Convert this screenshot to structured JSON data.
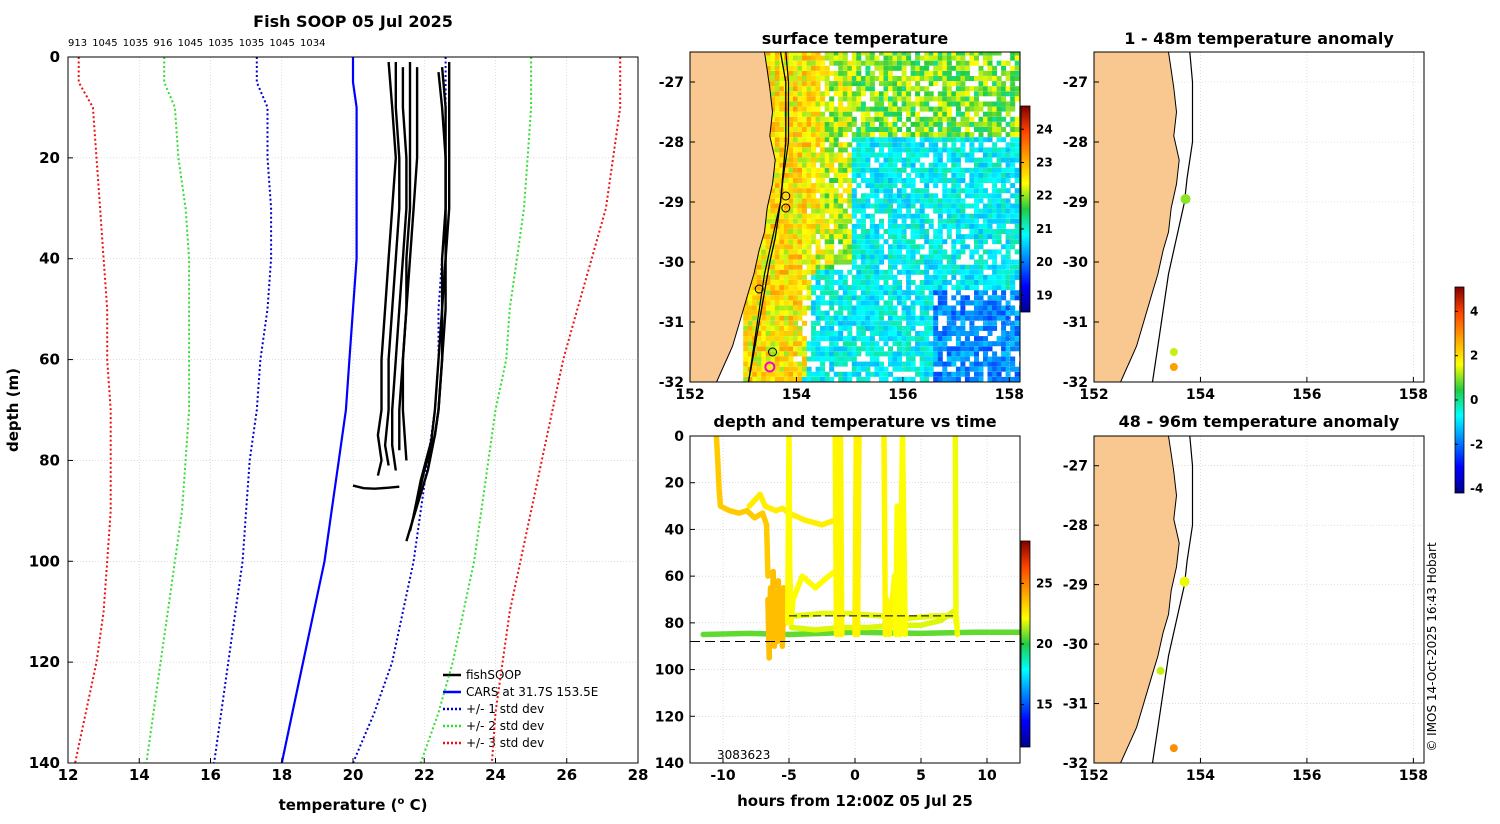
{
  "colors": {
    "fish": "#000000",
    "cars": "#0000ff",
    "sd1": "#0000cc",
    "sd2": "#33dd33",
    "sd3": "#ee1111",
    "land": "#f9c890",
    "grid": "#c8c8c8",
    "magenta": "#ff00cc"
  },
  "credit": "© IMOS 14-Oct-2025 16:43 Hobart",
  "chart_data": [
    {
      "id": "profile",
      "type": "line",
      "title": "Fish SOOP 05 Jul 2025",
      "xlabel": "temperature (",
      "xlabel_sup": "o",
      "xlabel_end": " C)",
      "ylabel": "depth (m)",
      "xlim": [
        12,
        28
      ],
      "ylim": [
        0,
        140
      ],
      "xticks": [
        12,
        14,
        16,
        18,
        20,
        22,
        24,
        26,
        28
      ],
      "yticks": [
        0,
        20,
        40,
        60,
        80,
        100,
        120,
        140
      ],
      "top_labels": [
        "913",
        "1045",
        "1035",
        "916",
        "1045",
        "1035",
        "1035",
        "1045",
        "1034"
      ],
      "legend": [
        "fishSOOP",
        "CARS at 31.7S 153.5E",
        "+/- 1 std dev",
        "+/- 2 std dev",
        "+/- 3 std dev"
      ],
      "depth": [
        0,
        5,
        10,
        20,
        30,
        40,
        50,
        60,
        70,
        80,
        90,
        100,
        110,
        120,
        130,
        140
      ],
      "cars": [
        20.0,
        20.0,
        20.1,
        20.1,
        20.1,
        20.1,
        20.0,
        19.9,
        19.8,
        19.6,
        19.4,
        19.2,
        18.9,
        18.6,
        18.3,
        18.0
      ],
      "sd1_low": [
        17.3,
        17.3,
        17.6,
        17.6,
        17.7,
        17.7,
        17.6,
        17.4,
        17.3,
        17.1,
        17.0,
        16.9,
        16.7,
        16.5,
        16.3,
        16.1
      ],
      "sd1_high": [
        22.6,
        22.6,
        22.6,
        22.6,
        22.6,
        22.5,
        22.4,
        22.4,
        22.3,
        22.1,
        21.9,
        21.7,
        21.4,
        21.1,
        20.6,
        20.0
      ],
      "sd2_low": [
        14.7,
        14.7,
        15.0,
        15.1,
        15.3,
        15.4,
        15.4,
        15.4,
        15.4,
        15.3,
        15.2,
        15.0,
        14.8,
        14.6,
        14.4,
        14.2
      ],
      "sd2_high": [
        25.0,
        25.0,
        25.0,
        24.9,
        24.8,
        24.6,
        24.4,
        24.3,
        24.0,
        23.8,
        23.6,
        23.4,
        23.1,
        22.8,
        22.4,
        21.9
      ],
      "sd3_low": [
        12.3,
        12.3,
        12.7,
        12.8,
        12.9,
        13.0,
        13.1,
        13.1,
        13.2,
        13.2,
        13.2,
        13.1,
        13.0,
        12.8,
        12.5,
        12.2
      ],
      "sd3_high": [
        27.5,
        27.5,
        27.5,
        27.3,
        27.1,
        26.7,
        26.3,
        25.9,
        25.6,
        25.3,
        25.0,
        24.7,
        24.4,
        24.2,
        24.0,
        23.9
      ],
      "casts": [
        {
          "t": [
            21.0,
            21.1,
            21.2,
            21.1,
            21.0,
            20.9,
            20.8,
            20.8,
            20.7,
            20.8,
            20.7
          ],
          "d": [
            1,
            10,
            20,
            30,
            40,
            50,
            60,
            70,
            75,
            80,
            83
          ]
        },
        {
          "t": [
            21.2,
            21.2,
            21.3,
            21.3,
            21.2,
            21.1,
            21.0,
            21.0,
            20.9,
            21.0
          ],
          "d": [
            1,
            10,
            20,
            30,
            40,
            50,
            60,
            70,
            77,
            81
          ]
        },
        {
          "t": [
            21.4,
            21.4,
            21.5,
            21.5,
            21.4,
            21.3,
            21.2,
            21.1,
            21.1,
            21.2
          ],
          "d": [
            2,
            10,
            20,
            30,
            40,
            50,
            60,
            70,
            77,
            82
          ]
        },
        {
          "t": [
            21.6,
            21.6,
            21.6,
            21.6,
            21.5,
            21.5,
            21.4,
            21.3,
            21.3
          ],
          "d": [
            1,
            10,
            20,
            30,
            40,
            50,
            60,
            70,
            78
          ]
        },
        {
          "t": [
            21.8,
            21.8,
            21.8,
            21.7,
            21.6,
            21.5,
            21.4,
            21.4,
            21.5
          ],
          "d": [
            2,
            10,
            20,
            30,
            40,
            50,
            60,
            70,
            80
          ]
        },
        {
          "t": [
            22.7,
            22.7,
            22.7,
            22.7,
            22.6,
            22.6,
            22.5,
            22.4,
            22.3,
            22.0,
            21.8,
            21.6
          ],
          "d": [
            1,
            10,
            20,
            30,
            40,
            50,
            60,
            70,
            75,
            82,
            88,
            94
          ]
        },
        {
          "t": [
            22.5,
            22.6,
            22.6,
            22.6,
            22.6,
            22.5,
            22.5,
            22.4,
            22.3,
            22.1,
            21.8,
            21.5
          ],
          "d": [
            2,
            10,
            20,
            30,
            40,
            50,
            60,
            70,
            75,
            82,
            89,
            96
          ]
        },
        {
          "t": [
            22.4,
            22.5,
            22.6,
            22.6,
            22.5,
            22.5,
            22.4,
            22.3,
            22.2,
            21.9,
            21.7
          ],
          "d": [
            3,
            10,
            20,
            30,
            40,
            50,
            60,
            70,
            76,
            84,
            91
          ]
        },
        {
          "t": [
            20.0,
            20.3,
            20.6,
            21.0,
            21.3
          ],
          "d": [
            85,
            85.5,
            85.6,
            85.4,
            85.2
          ]
        }
      ]
    },
    {
      "id": "sst",
      "type": "heatmap",
      "title": "surface temperature",
      "xlim": [
        152,
        158.2
      ],
      "ylim": [
        -32,
        -26.5
      ],
      "xticks": [
        152,
        154,
        156,
        158
      ],
      "yticks": [
        -27,
        -28,
        -29,
        -30,
        -31,
        -32
      ],
      "colorbar": {
        "min": 18.5,
        "max": 24.7,
        "ticks": [
          19,
          20,
          21,
          22,
          23,
          24
        ]
      },
      "track": {
        "lon": [
          153.7,
          153.8,
          153.8,
          153.7,
          153.6,
          153.5,
          153.4,
          153.3,
          153.2,
          153.1
        ],
        "lat": [
          -26.5,
          -27.0,
          -28.0,
          -29.0,
          -29.6,
          -30.0,
          -30.5,
          -31.0,
          -31.5,
          -32.0
        ]
      },
      "stations": [
        {
          "lon": 153.8,
          "lat": -28.9,
          "marker": "open"
        },
        {
          "lon": 153.8,
          "lat": -29.1,
          "marker": "open"
        },
        {
          "lon": 153.3,
          "lat": -30.45,
          "marker": "open"
        },
        {
          "lon": 153.55,
          "lat": -31.5,
          "marker": "open"
        },
        {
          "lon": 153.5,
          "lat": -31.75,
          "marker": "magenta"
        }
      ]
    },
    {
      "id": "time",
      "type": "scatter",
      "title": "depth and temperature vs time",
      "xlabel": "hours from 12:00Z 05 Jul 25",
      "xlim": [
        -12.5,
        12.5
      ],
      "ylim": [
        0,
        140
      ],
      "xticks": [
        -10,
        -5,
        0,
        5,
        10
      ],
      "yticks": [
        0,
        20,
        40,
        60,
        80,
        100,
        120,
        140
      ],
      "colorbar": {
        "min": 11.5,
        "max": 28.5,
        "ticks": [
          15,
          20,
          25
        ]
      },
      "annotation": "3083623",
      "reference_depths": [
        77,
        88
      ],
      "tracks": [
        {
          "temp": 20.6,
          "h": [
            -11.5,
            -8,
            -5,
            0,
            5,
            9,
            12.5
          ],
          "d": [
            85,
            84.5,
            85,
            84,
            84.5,
            84,
            84
          ]
        },
        {
          "temp": 23.3,
          "h": [
            -10.5,
            -10.4,
            -10.3,
            -10.2,
            -9.5,
            -8.8,
            -8.2,
            -7.6,
            -7.0,
            -6.7,
            -6.6
          ],
          "d": [
            0,
            10,
            22,
            30,
            32,
            33,
            32,
            35,
            33,
            38,
            60
          ]
        },
        {
          "temp": 22.5,
          "h": [
            -8,
            -7.2,
            -6.8,
            -6.0,
            -5.5,
            -5.0,
            -3.8,
            -2.5,
            -1.5
          ],
          "d": [
            30,
            25,
            30,
            32,
            31,
            33,
            36,
            38,
            36
          ]
        },
        {
          "temp": 23.6,
          "h": [
            -6.6,
            -6.5,
            -6.4,
            -6.3,
            -6.2,
            -6.1,
            -6.0,
            -5.9,
            -5.8,
            -5.7,
            -5.6,
            -5.5,
            -5.4,
            -5.3
          ],
          "d": [
            70,
            95,
            65,
            85,
            58,
            90,
            70,
            88,
            62,
            85,
            70,
            90,
            65,
            80
          ]
        },
        {
          "temp": 22.2,
          "h": [
            -5.1,
            -5.0,
            -4.95,
            -4.85,
            -4.7,
            -4.0,
            -3.0,
            -2.0,
            -1.5
          ],
          "d": [
            80,
            0,
            55,
            80,
            70,
            60,
            65,
            60,
            58
          ]
        },
        {
          "temp": 21.8,
          "h": [
            -4.8,
            -3,
            -1,
            1,
            3,
            5,
            6.5,
            7.5
          ],
          "d": [
            82,
            83,
            82,
            82,
            81,
            81,
            79,
            75
          ]
        },
        {
          "temp": 21.9,
          "h": [
            -4.5,
            -2.5,
            -0.5,
            2,
            4,
            6,
            7.6
          ],
          "d": [
            77,
            76,
            76,
            77,
            78,
            77,
            77
          ]
        },
        {
          "temp": 22.3,
          "h": [
            -1.5,
            -1.4,
            -1.3,
            -1.2,
            -1.1,
            -1.0
          ],
          "d": [
            0,
            85,
            0,
            85,
            0,
            85
          ]
        },
        {
          "temp": 22.4,
          "h": [
            0,
            0.1,
            0.2,
            0.3
          ],
          "d": [
            85,
            0,
            85,
            0
          ]
        },
        {
          "temp": 22.3,
          "h": [
            2.2,
            2.3,
            2.4,
            2.6,
            3.0
          ],
          "d": [
            0,
            85,
            70,
            85,
            60
          ]
        },
        {
          "temp": 22.1,
          "h": [
            3.0,
            3.1,
            3.2,
            3.4,
            3.6,
            3.8
          ],
          "d": [
            60,
            85,
            30,
            85,
            0,
            85
          ]
        },
        {
          "temp": 22.0,
          "h": [
            7.6,
            7.65,
            7.7,
            7.75
          ],
          "d": [
            0,
            80,
            78,
            85
          ]
        }
      ]
    },
    {
      "id": "anom1",
      "type": "scatter",
      "title": "1 - 48m temperature anomaly",
      "xlim": [
        152,
        158.2
      ],
      "ylim": [
        -32,
        -26.5
      ],
      "xticks": [
        152,
        154,
        156,
        158
      ],
      "yticks": [
        -27,
        -28,
        -29,
        -30,
        -31,
        -32
      ],
      "points": [
        {
          "lon": 153.72,
          "lat": -28.95,
          "anom": 1.0,
          "r": 5
        },
        {
          "lon": 153.5,
          "lat": -31.5,
          "anom": 1.3,
          "r": 4
        },
        {
          "lon": 153.5,
          "lat": -31.75,
          "anom": 2.8,
          "r": 4
        }
      ]
    },
    {
      "id": "anom2",
      "type": "scatter",
      "title": "48 - 96m temperature anomaly",
      "xlim": [
        152,
        158.2
      ],
      "ylim": [
        -32,
        -26.5
      ],
      "xticks": [
        152,
        154,
        156,
        158
      ],
      "yticks": [
        -27,
        -28,
        -29,
        -30,
        -31,
        -32
      ],
      "points": [
        {
          "lon": 153.7,
          "lat": -28.95,
          "anom": 1.5,
          "r": 5
        },
        {
          "lon": 153.25,
          "lat": -30.45,
          "anom": 1.3,
          "r": 4
        },
        {
          "lon": 153.5,
          "lat": -31.75,
          "anom": 3.0,
          "r": 4
        }
      ],
      "colorbar": {
        "min": -4.2,
        "max": 5.1,
        "ticks": [
          -4,
          -2,
          0,
          2,
          4
        ]
      }
    }
  ]
}
